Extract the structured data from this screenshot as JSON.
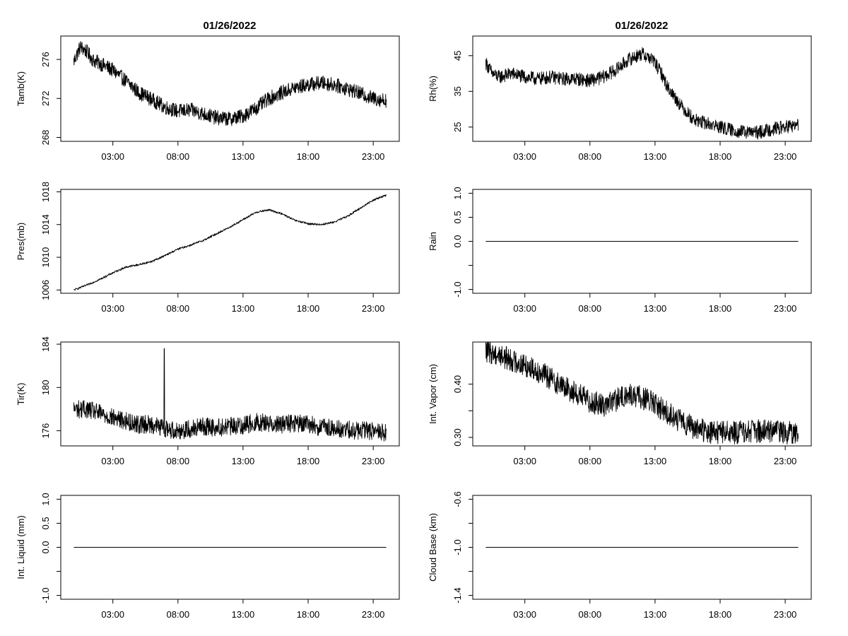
{
  "titles": [
    "01/26/2022",
    "01/26/2022"
  ],
  "chart_data": [
    {
      "id": "tamb",
      "type": "line",
      "title": "01/26/2022",
      "ylabel": "Tamb(K)",
      "xlabel": "",
      "x_ticks": [
        "03:00",
        "08:00",
        "13:00",
        "18:00",
        "23:00"
      ],
      "x_tick_hours": [
        3,
        8,
        13,
        18,
        23
      ],
      "xlim_hours": [
        -1,
        25
      ],
      "ylim": [
        267.6,
        278.4
      ],
      "y_ticks": [
        268,
        272,
        276
      ],
      "y_tick_labels": [
        "268",
        "272",
        "276"
      ],
      "x_hours": [
        0,
        0.5,
        1,
        1.5,
        2,
        3,
        4,
        5,
        6,
        7,
        8,
        9,
        10,
        11,
        12,
        13,
        14,
        15,
        16,
        17,
        18,
        19,
        20,
        21,
        22,
        23,
        24
      ],
      "values": [
        275.8,
        277.3,
        276.8,
        275.9,
        275.6,
        274.9,
        273.8,
        272.6,
        271.9,
        271.1,
        270.7,
        270.8,
        270.4,
        270.0,
        269.9,
        270.2,
        271.0,
        272.0,
        272.6,
        273.1,
        273.4,
        273.6,
        273.4,
        273.0,
        272.5,
        272.0,
        271.8
      ],
      "noise": 0.75
    },
    {
      "id": "rh",
      "type": "line",
      "title": "01/26/2022",
      "ylabel": "Rh(%)",
      "xlabel": "",
      "x_ticks": [
        "03:00",
        "08:00",
        "13:00",
        "18:00",
        "23:00"
      ],
      "x_tick_hours": [
        3,
        8,
        13,
        18,
        23
      ],
      "xlim_hours": [
        -1,
        25
      ],
      "ylim": [
        21,
        50.5
      ],
      "y_ticks": [
        25,
        35,
        45
      ],
      "y_tick_labels": [
        "25",
        "35",
        "45"
      ],
      "x_hours": [
        0,
        0.5,
        1,
        2,
        3,
        4,
        5,
        6,
        7,
        8,
        9,
        10,
        11,
        12,
        12.8,
        13.5,
        14,
        15,
        16,
        17,
        18,
        19,
        20,
        21,
        22,
        23,
        24
      ],
      "values": [
        43,
        40,
        39,
        40,
        39,
        38.5,
        39,
        38.5,
        38.5,
        38,
        39,
        41,
        44,
        45.5,
        44,
        40,
        36,
        31,
        27,
        26,
        25,
        24,
        23.5,
        23.5,
        24.5,
        25,
        25.5
      ],
      "noise": 1.9
    },
    {
      "id": "pres",
      "type": "line",
      "title": "",
      "ylabel": "Pres(mb)",
      "xlabel": "",
      "x_ticks": [
        "03:00",
        "08:00",
        "13:00",
        "18:00",
        "23:00"
      ],
      "x_tick_hours": [
        3,
        8,
        13,
        18,
        23
      ],
      "xlim_hours": [
        -1,
        25
      ],
      "ylim": [
        1005.6,
        1018.3
      ],
      "y_ticks": [
        1006,
        1010,
        1014,
        1018
      ],
      "y_tick_labels": [
        "1006",
        "1010",
        "1014",
        "1018"
      ],
      "x_hours": [
        0,
        1,
        2,
        3,
        4,
        5,
        6,
        7,
        8,
        9,
        10,
        11,
        12,
        13,
        14,
        15,
        16,
        17,
        18,
        19,
        20,
        21,
        22,
        23,
        24
      ],
      "values": [
        1006.0,
        1006.6,
        1007.3,
        1008.1,
        1008.8,
        1009.1,
        1009.5,
        1010.2,
        1011.0,
        1011.5,
        1012.1,
        1012.9,
        1013.7,
        1014.6,
        1015.5,
        1015.8,
        1015.3,
        1014.5,
        1014.1,
        1014.0,
        1014.3,
        1015.0,
        1016.0,
        1017.0,
        1017.6
      ],
      "noise": 0.12
    },
    {
      "id": "rain",
      "type": "line",
      "title": "",
      "ylabel": "Rain",
      "xlabel": "",
      "x_ticks": [
        "03:00",
        "08:00",
        "13:00",
        "18:00",
        "23:00"
      ],
      "x_tick_hours": [
        3,
        8,
        13,
        18,
        23
      ],
      "xlim_hours": [
        -1,
        25
      ],
      "ylim": [
        -1.08,
        1.08
      ],
      "y_ticks": [
        -1.0,
        -0.5,
        0.0,
        0.5,
        1.0
      ],
      "y_tick_labels": [
        "-1.0",
        "",
        "0.0",
        "0.5",
        "1.0"
      ],
      "x_hours": [
        0,
        24
      ],
      "values": [
        0,
        0
      ],
      "noise": 0
    },
    {
      "id": "tir",
      "type": "line",
      "title": "",
      "ylabel": "Tir(K)",
      "xlabel": "",
      "x_ticks": [
        "03:00",
        "08:00",
        "13:00",
        "18:00",
        "23:00"
      ],
      "x_tick_hours": [
        3,
        8,
        13,
        18,
        23
      ],
      "xlim_hours": [
        -1,
        25
      ],
      "ylim": [
        174.6,
        184.2
      ],
      "y_ticks": [
        176,
        180,
        184
      ],
      "y_tick_labels": [
        "176",
        "180",
        "184"
      ],
      "x_hours": [
        0,
        1,
        2,
        3,
        4,
        5,
        6,
        7,
        8,
        9,
        10,
        11,
        12,
        13,
        14,
        15,
        16,
        17,
        18,
        19,
        20,
        21,
        22,
        23,
        24
      ],
      "values": [
        178.0,
        178.0,
        177.6,
        177.2,
        176.9,
        176.6,
        176.6,
        176.2,
        176.0,
        176.2,
        176.4,
        176.3,
        176.4,
        176.5,
        176.8,
        176.7,
        176.6,
        176.7,
        176.6,
        176.3,
        176.2,
        176.1,
        176.0,
        176.0,
        175.8
      ],
      "spike_hour": 6.95,
      "spike_value": 183.6,
      "noise": 0.85
    },
    {
      "id": "vapor",
      "type": "line",
      "title": "",
      "ylabel": "Int. Vapor (cm)",
      "xlabel": "",
      "x_ticks": [
        "03:00",
        "08:00",
        "13:00",
        "18:00",
        "23:00"
      ],
      "x_tick_hours": [
        3,
        8,
        13,
        18,
        23
      ],
      "xlim_hours": [
        -1,
        25
      ],
      "ylim": [
        0.284,
        0.479
      ],
      "y_ticks": [
        0.3,
        0.35,
        0.4
      ],
      "y_tick_labels": [
        "0.30",
        "",
        "0.40"
      ],
      "x_hours": [
        0,
        1,
        2,
        3,
        4,
        5,
        6,
        7,
        8,
        9,
        10,
        11,
        12,
        13,
        14,
        15,
        16,
        17,
        18,
        19,
        20,
        21,
        22,
        23,
        24
      ],
      "values": [
        0.462,
        0.455,
        0.445,
        0.435,
        0.425,
        0.41,
        0.395,
        0.382,
        0.368,
        0.36,
        0.37,
        0.38,
        0.375,
        0.362,
        0.345,
        0.33,
        0.318,
        0.31,
        0.31,
        0.309,
        0.31,
        0.312,
        0.311,
        0.309,
        0.308
      ],
      "noise": 0.022
    },
    {
      "id": "liquid",
      "type": "line",
      "title": "",
      "ylabel": "Int. Liquid (mm)",
      "xlabel": "",
      "x_ticks": [
        "03:00",
        "08:00",
        "13:00",
        "18:00",
        "23:00"
      ],
      "x_tick_hours": [
        3,
        8,
        13,
        18,
        23
      ],
      "xlim_hours": [
        -1,
        25
      ],
      "ylim": [
        -1.08,
        1.08
      ],
      "y_ticks": [
        -1.0,
        -0.5,
        0.0,
        0.5,
        1.0
      ],
      "y_tick_labels": [
        "-1.0",
        "",
        "0.0",
        "0.5",
        "1.0"
      ],
      "x_hours": [
        0,
        24
      ],
      "values": [
        0,
        0
      ],
      "noise": 0
    },
    {
      "id": "cloud",
      "type": "line",
      "title": "",
      "ylabel": "Cloud Base (km)",
      "xlabel": "",
      "x_ticks": [
        "03:00",
        "08:00",
        "13:00",
        "18:00",
        "23:00"
      ],
      "x_tick_hours": [
        3,
        8,
        13,
        18,
        23
      ],
      "xlim_hours": [
        -1,
        25
      ],
      "ylim": [
        -1.432,
        -0.568
      ],
      "y_ticks": [
        -1.4,
        -1.2,
        -1.0,
        -0.8,
        -0.6
      ],
      "y_tick_labels": [
        "-1.4",
        "",
        "-1.0",
        "",
        "-0.6"
      ],
      "x_hours": [
        0,
        24
      ],
      "values": [
        -1.0,
        -1.0
      ],
      "noise": 0
    }
  ]
}
